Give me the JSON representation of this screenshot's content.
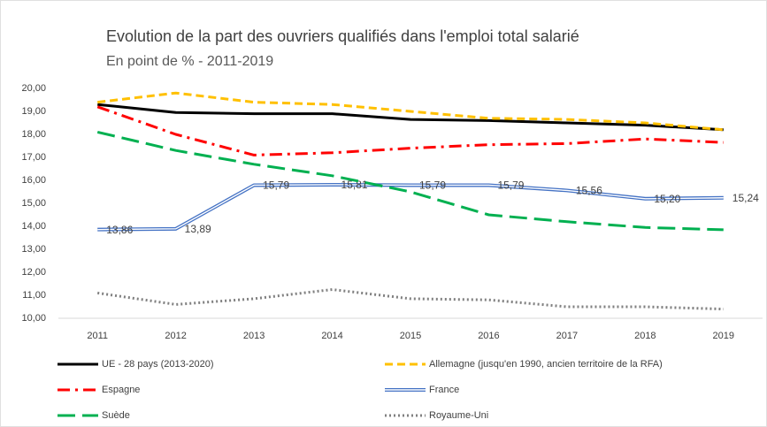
{
  "chart_data": {
    "type": "line",
    "title": "Evolution de la part des ouvriers qualifiés dans l'emploi total salarié",
    "subtitle": "En point de %  - 2011-2019",
    "x": [
      2011,
      2012,
      2013,
      2014,
      2015,
      2016,
      2017,
      2018,
      2019
    ],
    "xlim": [
      2010.5,
      2019.5
    ],
    "xticks": [
      2011,
      2012,
      2013,
      2014,
      2015,
      2016,
      2017,
      2018,
      2019
    ],
    "ylim": [
      10,
      20
    ],
    "yticks": [
      {
        "value": 10,
        "label": "10,00"
      },
      {
        "value": 11,
        "label": "11,00"
      },
      {
        "value": 12,
        "label": "12,00"
      },
      {
        "value": 13,
        "label": "13,00"
      },
      {
        "value": 14,
        "label": "14,00"
      },
      {
        "value": 15,
        "label": "15,00"
      },
      {
        "value": 16,
        "label": "16,00"
      },
      {
        "value": 17,
        "label": "17,00"
      },
      {
        "value": 18,
        "label": "18,00"
      },
      {
        "value": 19,
        "label": "19,00"
      },
      {
        "value": 20,
        "label": "20,00"
      }
    ],
    "grid": false,
    "legend": "bottom",
    "series": [
      {
        "name": "UE - 28 pays (2013-2020)",
        "color": "#000000",
        "line_style": "solid",
        "values": [
          19.3,
          18.95,
          18.9,
          18.9,
          18.65,
          18.6,
          18.5,
          18.4,
          18.2
        ]
      },
      {
        "name": "Allemagne (jusqu'en 1990, ancien territoire de la RFA)",
        "color": "#ffc000",
        "line_style": "dashed",
        "values": [
          19.4,
          19.8,
          19.4,
          19.3,
          19.0,
          18.7,
          18.65,
          18.5,
          18.2
        ]
      },
      {
        "name": "Espagne",
        "color": "#ff0000",
        "line_style": "dashdot",
        "values": [
          19.2,
          18.0,
          17.1,
          17.2,
          17.4,
          17.55,
          17.6,
          17.8,
          17.65
        ]
      },
      {
        "name": "France",
        "color": "#4472c4",
        "line_style": "double",
        "values": [
          13.86,
          13.89,
          15.79,
          15.81,
          15.79,
          15.79,
          15.56,
          15.2,
          15.24
        ],
        "value_labels": [
          "13,86",
          "13,89",
          "15,79",
          "15,81",
          "15,79",
          "15,79",
          "15,56",
          "15,20",
          "15,24"
        ]
      },
      {
        "name": "Suède",
        "color": "#00b050",
        "line_style": "longdash",
        "values": [
          18.1,
          17.3,
          16.7,
          16.2,
          15.5,
          14.5,
          14.2,
          13.95,
          13.85
        ]
      },
      {
        "name": "Royaume-Uni",
        "color": "#808080",
        "line_style": "dotted",
        "values": [
          11.1,
          10.6,
          10.85,
          11.25,
          10.85,
          10.8,
          10.5,
          10.5,
          10.4
        ]
      }
    ]
  }
}
